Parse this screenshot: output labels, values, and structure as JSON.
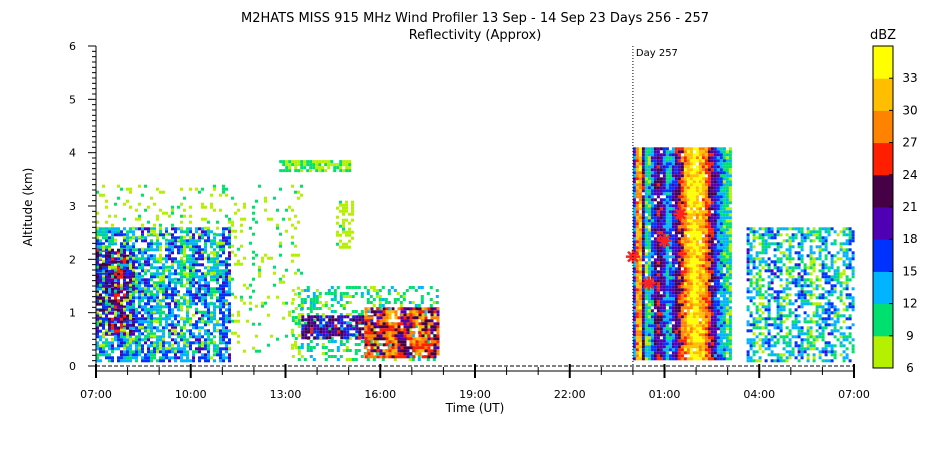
{
  "chart_data": {
    "type": "heatmap",
    "title": "M2HATS MISS 915 MHz Wind Profiler  13 Sep - 14 Sep 23 Days 256 - 257",
    "subtitle": "Reflectivity (Approx)",
    "xlabel": "Time (UT)",
    "ylabel": "Altitude (km)",
    "x_ticks": [
      "07:00",
      "10:00",
      "13:00",
      "16:00",
      "19:00",
      "22:00",
      "01:00",
      "04:00",
      "07:00"
    ],
    "x_range_hours": [
      0,
      24
    ],
    "y_ticks": [
      "0",
      "1",
      "2",
      "3",
      "4",
      "5",
      "6"
    ],
    "ylim": [
      0,
      6
    ],
    "day_marker": {
      "label": "Day 257",
      "x_hours": 17
    },
    "colorbar": {
      "unit": "dBZ",
      "min": 6,
      "max": 36,
      "tick_labels": [
        "6",
        "9",
        "12",
        "15",
        "18",
        "21",
        "24",
        "27",
        "30",
        "33"
      ],
      "colors": [
        "#b4f000",
        "#00e06e",
        "#00b4ff",
        "#0032ff",
        "#5000b4",
        "#460046",
        "#ff1e00",
        "#ff8200",
        "#ffbe00",
        "#ffff00"
      ]
    },
    "markers": [
      {
        "x_hours": 17.0,
        "y_km": 2.05
      },
      {
        "x_hours": 17.5,
        "y_km": 1.55
      },
      {
        "x_hours": 18.0,
        "y_km": 2.35
      },
      {
        "x_hours": 18.5,
        "y_km": 2.85
      }
    ],
    "marker_color": "#ff2020",
    "regions": [
      {
        "name": "morning-low-cloud",
        "t": [
          0,
          4.2
        ],
        "alt": [
          0.1,
          2.6
        ],
        "level": [
          8,
          20
        ],
        "density": 0.7
      },
      {
        "name": "morning-dense-core",
        "t": [
          0,
          1.2
        ],
        "alt": [
          0.6,
          2.2
        ],
        "level": [
          15,
          27
        ],
        "density": 0.7
      },
      {
        "name": "scattered-mid-morning",
        "t": [
          0,
          6.5
        ],
        "alt": [
          0.3,
          3.4
        ],
        "level": [
          6,
          11
        ],
        "density": 0.12
      },
      {
        "name": "thin-layer-3.8km",
        "t": [
          5.8,
          8.0
        ],
        "alt": [
          3.68,
          3.86
        ],
        "level": [
          6,
          12
        ],
        "density": 0.8
      },
      {
        "name": "afternoon-boundary",
        "t": [
          6.2,
          10.8
        ],
        "alt": [
          0.1,
          1.5
        ],
        "level": [
          7,
          14
        ],
        "density": 0.35
      },
      {
        "name": "afternoon-layer-0.8km",
        "t": [
          6.5,
          8.7
        ],
        "alt": [
          0.55,
          0.95
        ],
        "level": [
          14,
          26
        ],
        "density": 0.75
      },
      {
        "name": "afternoon-intense",
        "t": [
          8.5,
          10.8
        ],
        "alt": [
          0.15,
          1.1
        ],
        "level": [
          18,
          33
        ],
        "density": 0.85
      },
      {
        "name": "isolated-3km-echo",
        "t": [
          7.6,
          8.1
        ],
        "alt": [
          2.2,
          3.1
        ],
        "level": [
          6,
          10
        ],
        "density": 0.5
      },
      {
        "name": "storm-column",
        "t": [
          17.0,
          20.1
        ],
        "alt": [
          0.15,
          4.1
        ],
        "level": [
          6,
          36
        ],
        "density": 0.97
      },
      {
        "name": "post-storm-cloud",
        "t": [
          20.6,
          24.0
        ],
        "alt": [
          0.1,
          2.6
        ],
        "level": [
          6,
          19
        ],
        "density": 0.55
      }
    ]
  }
}
